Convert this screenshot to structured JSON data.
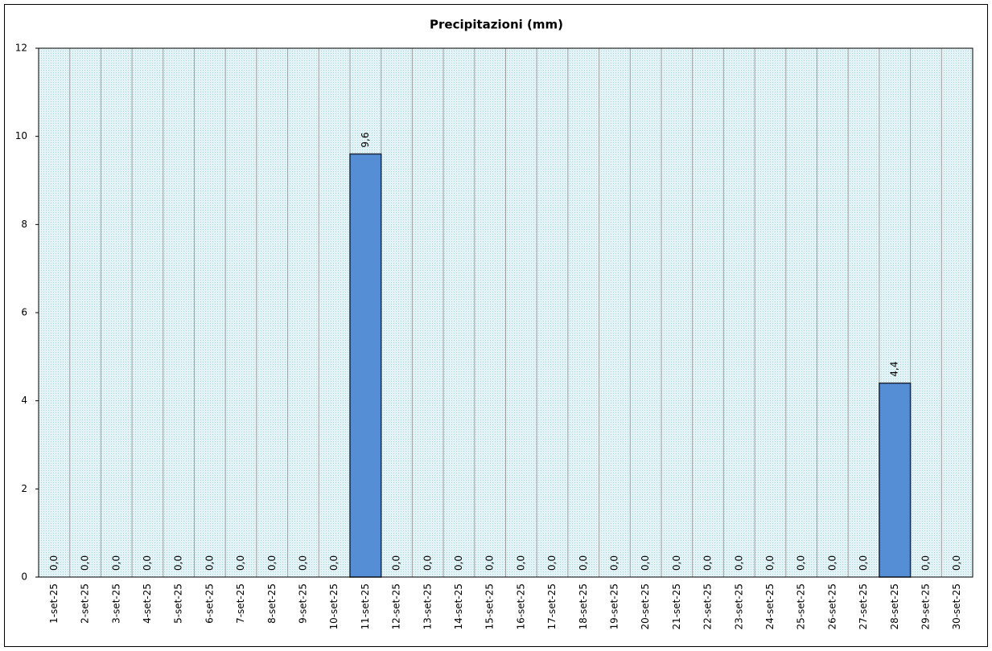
{
  "chart_data": {
    "type": "bar",
    "title": "Precipitazioni  (mm)",
    "categories": [
      "1-set-25",
      "2-set-25",
      "3-set-25",
      "4-set-25",
      "5-set-25",
      "6-set-25",
      "7-set-25",
      "8-set-25",
      "9-set-25",
      "10-set-25",
      "11-set-25",
      "12-set-25",
      "13-set-25",
      "14-set-25",
      "15-set-25",
      "16-set-25",
      "17-set-25",
      "18-set-25",
      "19-set-25",
      "20-set-25",
      "21-set-25",
      "22-set-25",
      "23-set-25",
      "24-set-25",
      "25-set-25",
      "26-set-25",
      "27-set-25",
      "28-set-25",
      "29-set-25",
      "30-set-25"
    ],
    "values": [
      0,
      0,
      0,
      0,
      0,
      0,
      0,
      0,
      0,
      0,
      9.6,
      0,
      0,
      0,
      0,
      0,
      0,
      0,
      0,
      0,
      0,
      0,
      0,
      0,
      0,
      0,
      0,
      4.4,
      0,
      0
    ],
    "value_labels": [
      "0,0",
      "0,0",
      "0,0",
      "0,0",
      "0,0",
      "0,0",
      "0,0",
      "0,0",
      "0,0",
      "0,0",
      "9,6",
      "0,0",
      "0,0",
      "0,0",
      "0,0",
      "0,0",
      "0,0",
      "0,0",
      "0,0",
      "0,0",
      "0,0",
      "0,0",
      "0,0",
      "0,0",
      "0,0",
      "0,0",
      "0,0",
      "4,4",
      "0,0",
      "0,0"
    ],
    "color": "#558ed5",
    "ylim": [
      0,
      12
    ],
    "yticks": [
      0,
      2,
      4,
      6,
      8,
      10,
      12
    ]
  }
}
